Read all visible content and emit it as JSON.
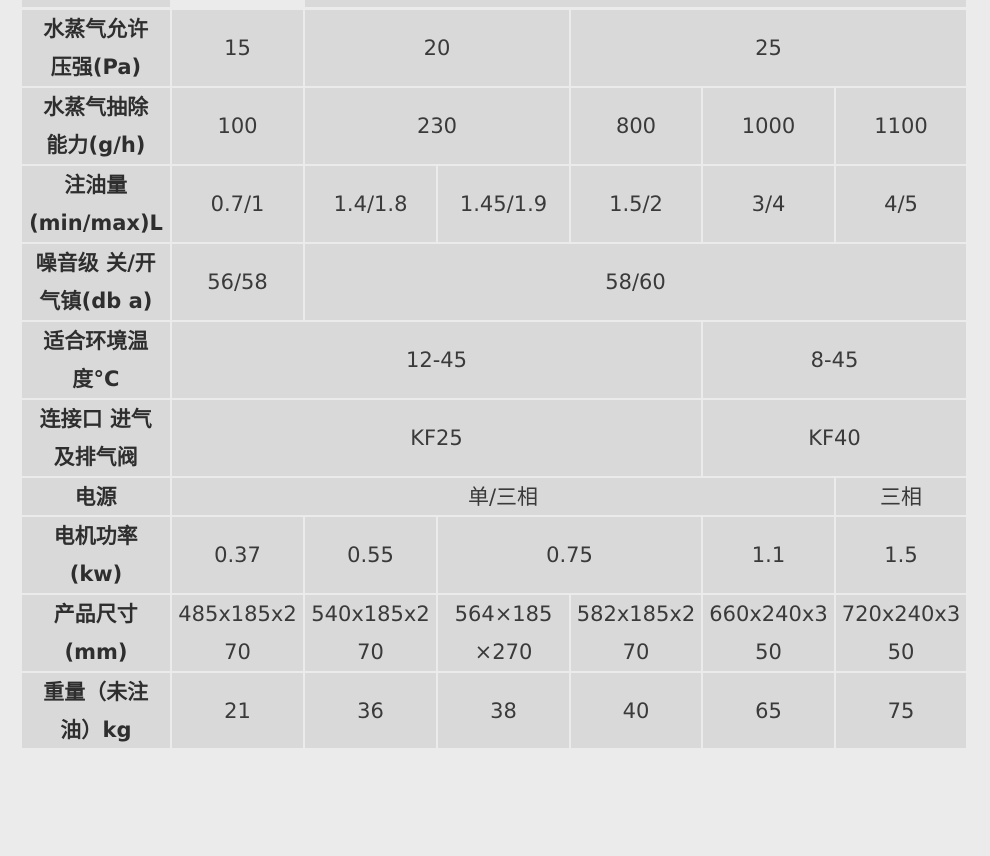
{
  "table": {
    "rows": [
      {
        "label": [
          "水蒸气允许",
          "压强(Pa)"
        ],
        "cells": [
          [
            "15"
          ],
          [
            "20"
          ],
          [
            "25"
          ]
        ]
      },
      {
        "label": [
          "水蒸气抽除",
          "能力(g/h)"
        ],
        "cells": [
          [
            "100"
          ],
          [
            "230"
          ],
          [
            "800"
          ],
          [
            "1000"
          ],
          [
            "1100"
          ]
        ]
      },
      {
        "label": [
          "注油量",
          "(min/max)L"
        ],
        "cells": [
          [
            "0.7/1"
          ],
          [
            "1.4/1.8"
          ],
          [
            "1.45/1.9"
          ],
          [
            "1.5/2"
          ],
          [
            "3/4"
          ],
          [
            "4/5"
          ]
        ]
      },
      {
        "label": [
          "噪音级 关/开",
          "气镇(db a)"
        ],
        "cells": [
          [
            "56/58"
          ],
          [
            "58/60"
          ]
        ]
      },
      {
        "label": [
          "适合环境温",
          "度°C"
        ],
        "cells": [
          [
            "12-45"
          ],
          [
            "8-45"
          ]
        ]
      },
      {
        "label": [
          "连接口 进气",
          "及排气阀"
        ],
        "cells": [
          [
            "KF25"
          ],
          [
            "KF40"
          ]
        ]
      },
      {
        "label": [
          "电源"
        ],
        "cells": [
          [
            "单/三相"
          ],
          [
            "三相"
          ]
        ]
      },
      {
        "label": [
          "电机功率",
          "(kw)"
        ],
        "cells": [
          [
            "0.37"
          ],
          [
            "0.55"
          ],
          [
            "0.75"
          ],
          [
            "1.1"
          ],
          [
            "1.5"
          ]
        ]
      },
      {
        "label": [
          "产品尺寸",
          "(mm)"
        ],
        "cells": [
          [
            "485x185x2",
            "70"
          ],
          [
            "540x185x2",
            "70"
          ],
          [
            "564×185",
            "×270"
          ],
          [
            "582x185x2",
            "70"
          ],
          [
            "660x240x3",
            "50"
          ],
          [
            "720x240x3",
            "50"
          ]
        ]
      },
      {
        "label": [
          "重量（未注",
          "油）kg"
        ],
        "cells": [
          [
            "21"
          ],
          [
            "36"
          ],
          [
            "38"
          ],
          [
            "40"
          ],
          [
            "65"
          ],
          [
            "75"
          ]
        ]
      }
    ]
  }
}
